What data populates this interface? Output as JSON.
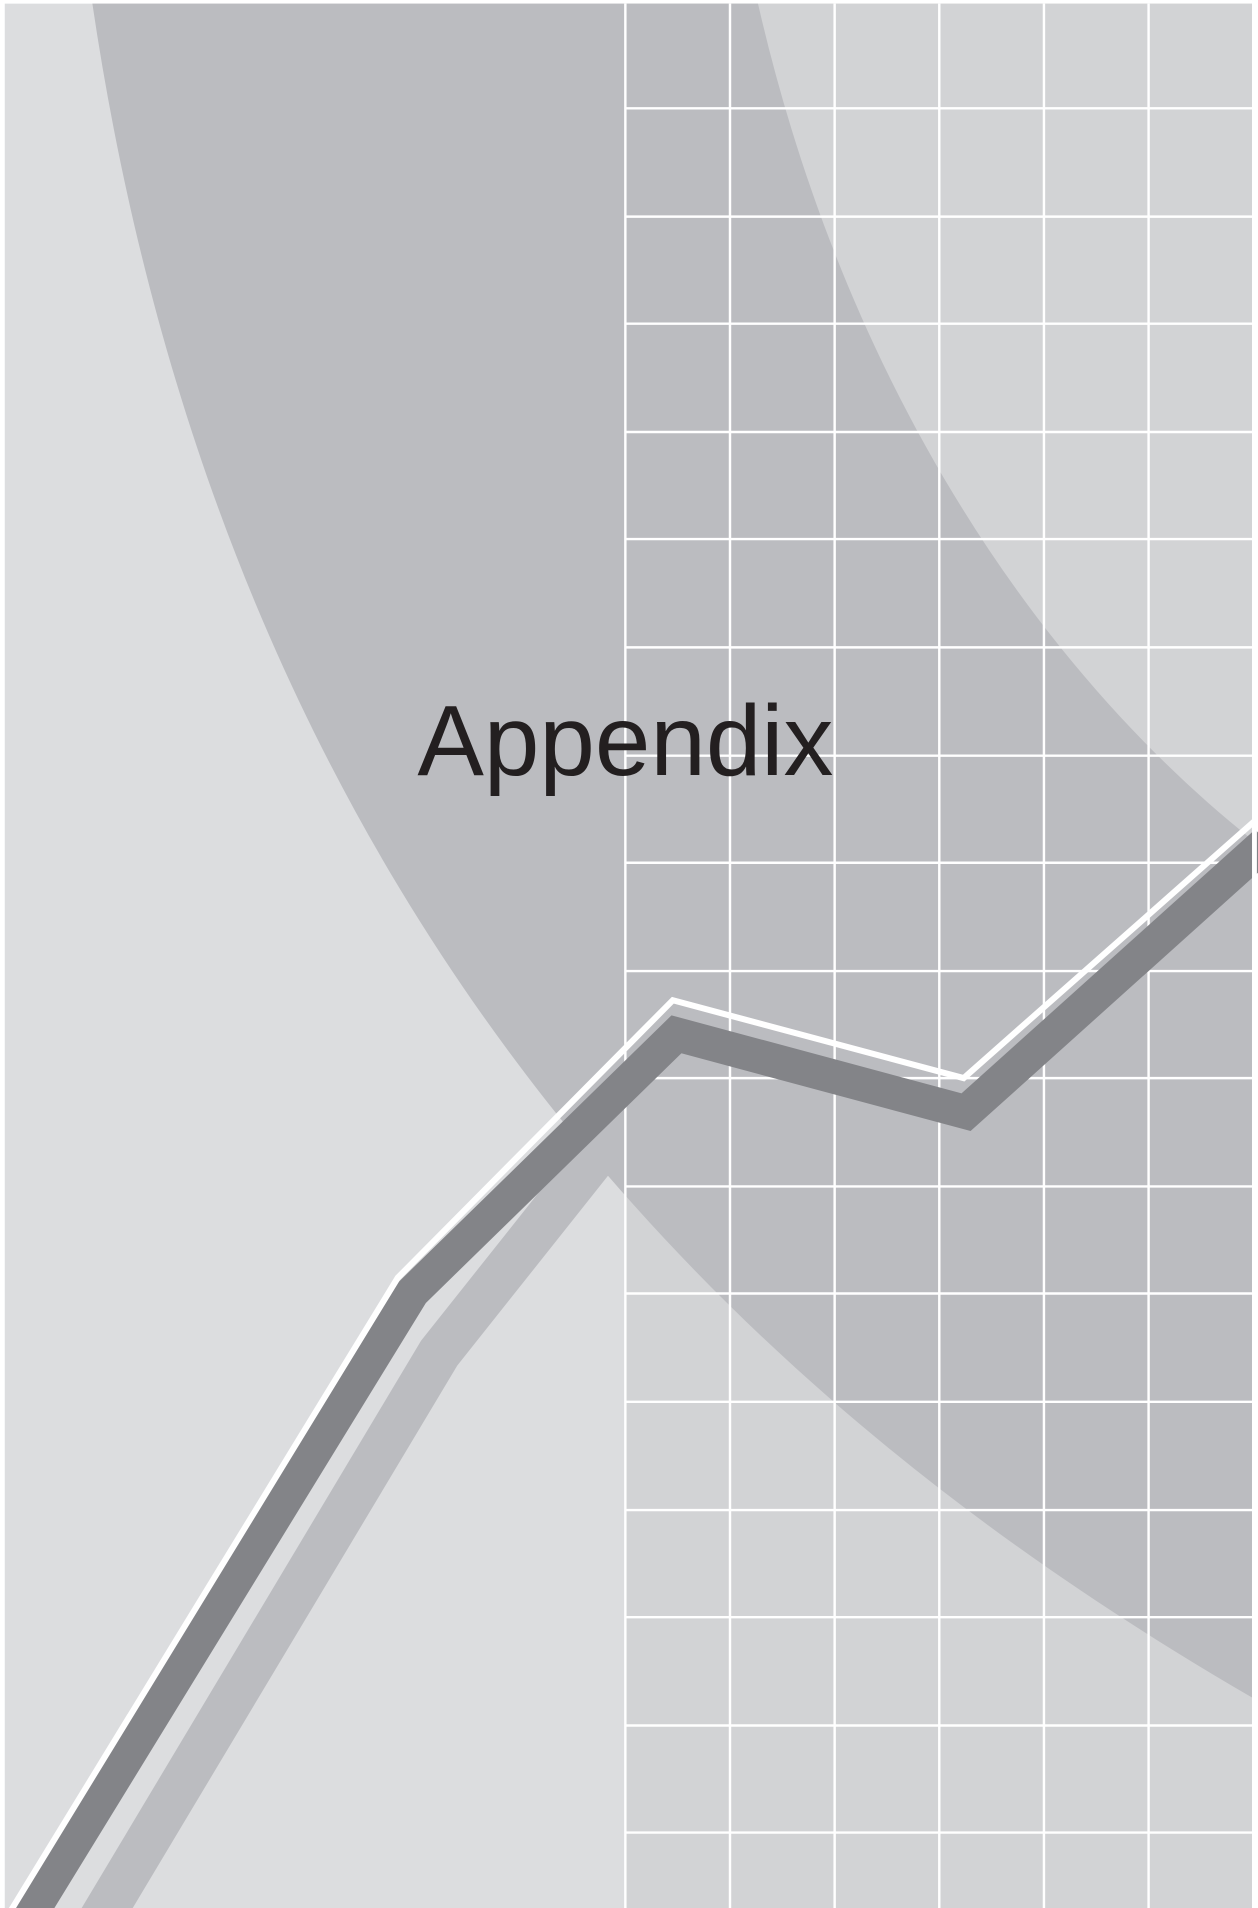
{
  "title": "Appendix"
}
